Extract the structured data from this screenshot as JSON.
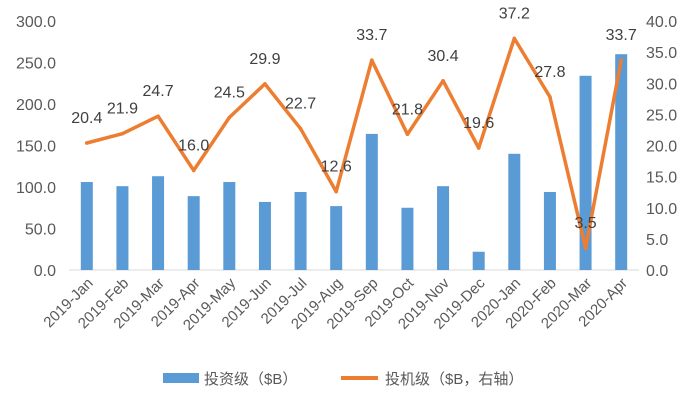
{
  "chart_data": {
    "type": "bar",
    "categories": [
      "2019-Jan",
      "2019-Feb",
      "2019-Mar",
      "2019-Apr",
      "2019-May",
      "2019-Jun",
      "2019-Jul",
      "2019-Aug",
      "2019-Sep",
      "2019-Oct",
      "2019-Nov",
      "2019-Dec",
      "2020-Jan",
      "2020-Feb",
      "2020-Mar",
      "2020-Apr"
    ],
    "series": [
      {
        "name": "投资级（$B）",
        "type": "bar",
        "axis": "left",
        "color": "#5B9BD5",
        "values": [
          106,
          101,
          113,
          89,
          106,
          82,
          94,
          77,
          164,
          75,
          101,
          22,
          140,
          94,
          234,
          260
        ]
      },
      {
        "name": "投机级（$B，右轴）",
        "type": "line",
        "axis": "right",
        "color": "#ED7D31",
        "values": [
          20.4,
          21.9,
          24.7,
          16.0,
          24.5,
          29.9,
          22.7,
          12.6,
          33.7,
          21.8,
          30.4,
          19.6,
          37.2,
          27.8,
          3.5,
          33.7
        ],
        "data_labels": [
          "20.4",
          "21.9",
          "24.7",
          "16.0",
          "24.5",
          "29.9",
          "22.7",
          "12.6",
          "33.7",
          "21.8",
          "30.4",
          "19.6",
          "37.2",
          "27.8",
          "3.5",
          "33.7"
        ]
      }
    ],
    "y_left": {
      "lim": [
        0,
        300
      ],
      "ticks": [
        "0.0",
        "50.0",
        "100.0",
        "150.0",
        "200.0",
        "250.0",
        "300.0"
      ]
    },
    "y_right": {
      "lim": [
        0,
        40
      ],
      "ticks": [
        "0.0",
        "5.0",
        "10.0",
        "15.0",
        "20.0",
        "25.0",
        "30.0",
        "35.0",
        "40.0"
      ]
    },
    "grid": false,
    "legend": "bottom"
  }
}
